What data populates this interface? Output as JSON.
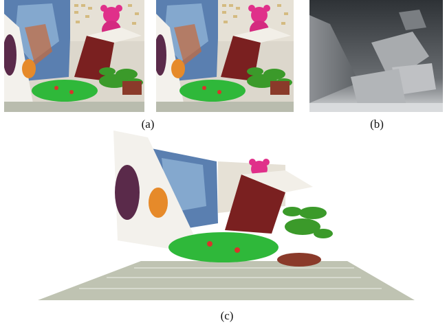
{
  "figure": {
    "captions": {
      "a": "(a)",
      "b": "(b)",
      "c": "(c)"
    },
    "panels": {
      "stereo_left": "image-photo",
      "stereo_right": "image-photo",
      "disparity_map": "depth-map",
      "reconstruction": "3d-render"
    }
  },
  "colors": {
    "poster_blue": "#5a7fb0",
    "chart_bg": "#e6e1d6",
    "teddy_pink": "#e0308a",
    "roof_red": "#7a2020",
    "frog_green": "#2fb83a",
    "plant_green": "#3b9a2a",
    "floor_gray": "#b9bcae",
    "depth_dark": "#2e3236",
    "depth_light": "#d9dbdd"
  }
}
